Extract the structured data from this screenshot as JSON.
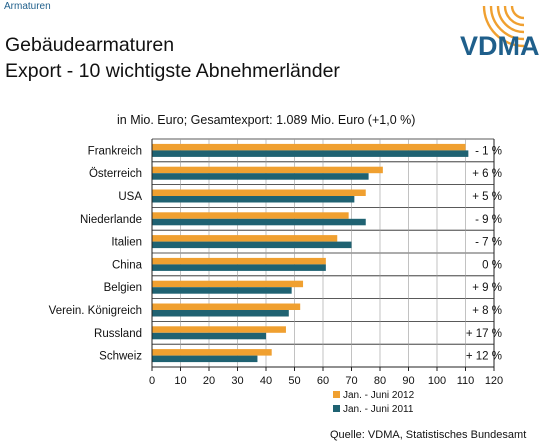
{
  "header": {
    "category": "Armaturen",
    "title_line1": "Gebäudearmaturen",
    "title_line2": "Export - 10 wichtigste Abnehmerländer",
    "logo_text": "VDMA"
  },
  "colors": {
    "series_2012": "#f0a030",
    "series_2011": "#1f6272",
    "logo_text": "#1f5f8b",
    "logo_arcs": "#f0a030"
  },
  "chart_data": {
    "type": "bar",
    "orientation": "horizontal",
    "subtitle": "in Mio. Euro; Gesamtexport: 1.089 Mio. Euro (+1,0 %)",
    "categories": [
      "Frankreich",
      "Österreich",
      "USA",
      "Niederlande",
      "Italien",
      "China",
      "Belgien",
      "Verein. Königreich",
      "Russland",
      "Schweiz"
    ],
    "series": [
      {
        "name": "Jan. - Juni 2012",
        "values": [
          110,
          81,
          75,
          69,
          65,
          61,
          53,
          52,
          47,
          42
        ]
      },
      {
        "name": "Jan. - Juni 2011",
        "values": [
          111,
          76,
          71,
          75,
          70,
          61,
          49,
          48,
          40,
          37
        ]
      }
    ],
    "changes": [
      "- 1 %",
      "+ 6 %",
      "+ 5 %",
      "- 9 %",
      "- 7 %",
      "0 %",
      "+ 9 %",
      "+ 8 %",
      "+ 17 %",
      "+ 12 %"
    ],
    "xlim": [
      0,
      120
    ],
    "xticks": [
      0,
      10,
      20,
      30,
      40,
      50,
      60,
      70,
      80,
      90,
      100,
      110,
      120
    ],
    "grid": true,
    "legend_position": "bottom"
  },
  "footer": {
    "source": "Quelle: VDMA, Statistisches Bundesamt"
  }
}
